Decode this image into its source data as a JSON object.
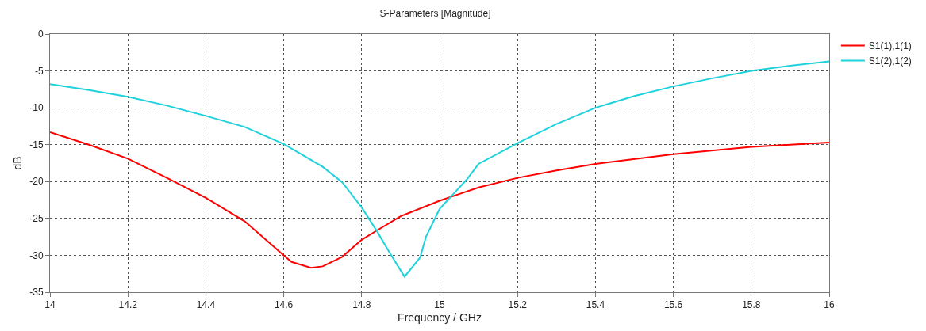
{
  "chart_data": {
    "type": "line",
    "title": "S-Parameters [Magnitude]",
    "xlabel": "Frequency / GHz",
    "ylabel": "dB",
    "xlim": [
      14,
      16
    ],
    "xticks": [
      14,
      {
        "value": 14.2,
        "label": "14.2"
      },
      {
        "value": 14.4,
        "label": "14.4"
      },
      {
        "value": 14.6,
        "label": "14.6"
      },
      {
        "value": 14.8,
        "label": "14.8"
      },
      15,
      {
        "value": 15.2,
        "label": "15.2"
      },
      {
        "value": 15.4,
        "label": "15.4"
      },
      {
        "value": 15.6,
        "label": "15.6"
      },
      {
        "value": 15.8,
        "label": "15.8"
      },
      16
    ],
    "ylim": [
      -35,
      0
    ],
    "yticks": [
      -35,
      -30,
      -25,
      -20,
      -15,
      -10,
      -5,
      0
    ],
    "grid": true,
    "legend": "top right",
    "marker": "none",
    "line_style": "solid",
    "series": [
      {
        "name": "S1(1),1(1)",
        "color": "#ff0000",
        "x": [
          14,
          14.1,
          14.2,
          14.3,
          14.4,
          14.5,
          14.6,
          14.62,
          14.67,
          14.7,
          14.75,
          14.8,
          14.84,
          14.9,
          15,
          15.05,
          15.1,
          15.2,
          15.3,
          15.4,
          15.6,
          15.8,
          16
        ],
        "values": [
          -13.3,
          -15.0,
          -16.9,
          -19.5,
          -22.2,
          -25.4,
          -30.0,
          -30.9,
          -31.7,
          -31.5,
          -30.2,
          -27.9,
          -26.6,
          -24.7,
          -22.6,
          -21.7,
          -20.8,
          -19.5,
          -18.5,
          -17.6,
          -16.3,
          -15.3,
          -14.7
        ]
      },
      {
        "name": "S1(2),1(2)",
        "color": "#1ed2dc",
        "x": [
          14,
          14.1,
          14.2,
          14.3,
          14.4,
          14.5,
          14.6,
          14.7,
          14.75,
          14.8,
          14.84,
          14.87,
          14.91,
          14.95,
          14.965,
          15,
          15.03,
          15.07,
          15.1,
          15.2,
          15.3,
          15.4,
          15.5,
          15.6,
          15.7,
          15.8,
          15.9,
          16
        ],
        "values": [
          -6.8,
          -7.6,
          -8.5,
          -9.7,
          -11.1,
          -12.6,
          -14.9,
          -18.0,
          -20.1,
          -23.5,
          -26.8,
          -29.5,
          -32.9,
          -30.3,
          -27.5,
          -23.7,
          -22.0,
          -19.7,
          -17.6,
          -14.8,
          -12.2,
          -10.0,
          -8.4,
          -7.1,
          -6.0,
          -5.0,
          -4.3,
          -3.7
        ]
      }
    ]
  }
}
